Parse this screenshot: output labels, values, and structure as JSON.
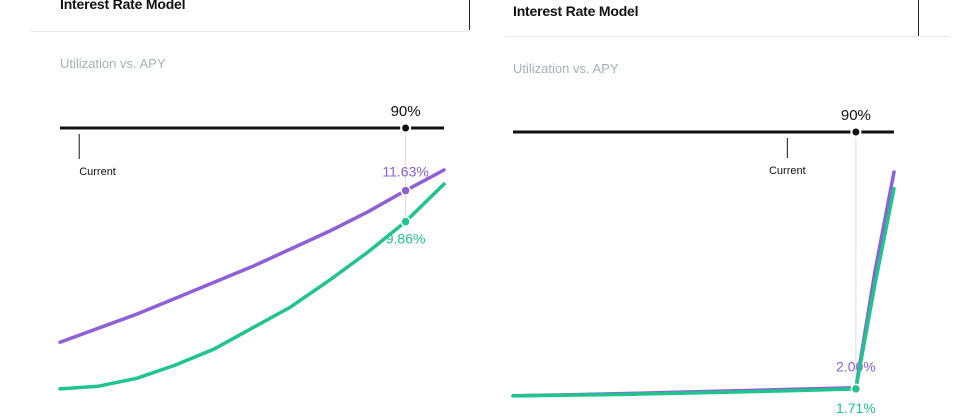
{
  "colors": {
    "supply": "#8e5fd6",
    "borrow": "#1fc48f",
    "axis": "#111111",
    "subtitle": "#a7b0b7"
  },
  "chart_data": [
    {
      "type": "line",
      "title": "Interest Rate Model",
      "subtitle": "Utilization vs. APY",
      "xlim": [
        0,
        100
      ],
      "current_label": "Current",
      "current_utilization": 5,
      "kink": {
        "x": 90,
        "label": "90%"
      },
      "series": [
        {
          "color": "#8e5fd6",
          "x": [
            0,
            10,
            20,
            30,
            40,
            50,
            60,
            70,
            80,
            90,
            100
          ],
          "values": [
            3.0,
            3.8,
            4.6,
            5.5,
            6.4,
            7.3,
            8.3,
            9.3,
            10.4,
            11.63,
            12.8
          ],
          "point_label": "11.63%",
          "label_at": 90
        },
        {
          "color": "#1fc48f",
          "x": [
            0,
            10,
            20,
            30,
            40,
            50,
            60,
            70,
            80,
            90,
            100
          ],
          "values": [
            0.35,
            0.5,
            0.95,
            1.7,
            2.6,
            3.8,
            5.0,
            6.5,
            8.1,
            9.86,
            12.0
          ],
          "point_label": "9.86%",
          "label_at": 90
        }
      ]
    },
    {
      "type": "line",
      "title": "Interest Rate Model",
      "subtitle": "Utilization vs. APY",
      "xlim": [
        0,
        100
      ],
      "current_label": "Current",
      "current_utilization": 72,
      "kink": {
        "x": 90,
        "label": "90%"
      },
      "series": [
        {
          "color": "#8e5fd6",
          "x": [
            0,
            15,
            30,
            45,
            60,
            75,
            90,
            95,
            100
          ],
          "values": [
            0.05,
            0.3,
            0.6,
            0.95,
            1.3,
            1.65,
            2.0,
            30.0,
            54.0
          ],
          "point_label": "2.00%",
          "label_at": 90
        },
        {
          "color": "#1fc48f",
          "x": [
            0,
            15,
            30,
            45,
            60,
            75,
            90,
            95,
            100
          ],
          "values": [
            0.04,
            0.2,
            0.4,
            0.68,
            0.98,
            1.32,
            1.71,
            27.0,
            50.0
          ],
          "point_label": "1.71%",
          "label_at": 90
        }
      ]
    }
  ]
}
